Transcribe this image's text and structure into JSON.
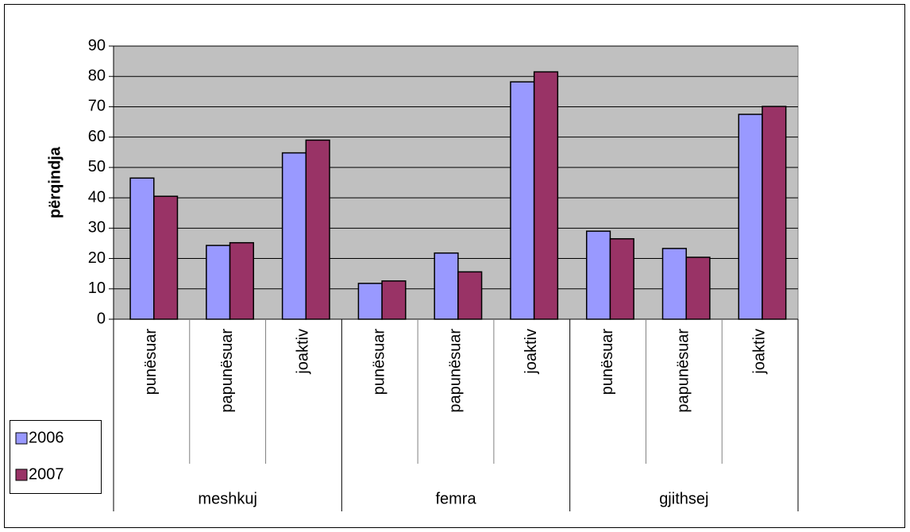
{
  "chart_data": {
    "type": "bar",
    "y_label": "përqindja",
    "categories": [
      "punësuar",
      "papunësuar",
      "joaktiv",
      "punësuar",
      "papunësuar",
      "joaktiv",
      "punësuar",
      "papunësuar",
      "joaktiv"
    ],
    "category_groups": [
      "meshkuj",
      "femra",
      "gjithsej"
    ],
    "series": [
      {
        "name": "2006",
        "color": "#9999ff",
        "values": [
          46.5,
          24.3,
          54.8,
          11.8,
          21.8,
          78.2,
          29.0,
          23.3,
          67.5
        ]
      },
      {
        "name": "2007",
        "color": "#993366",
        "values": [
          40.5,
          25.2,
          59.0,
          12.6,
          15.6,
          81.5,
          26.5,
          20.4,
          70.1
        ]
      }
    ],
    "ylim": [
      0,
      90
    ],
    "yticks": [
      0,
      10,
      20,
      30,
      40,
      50,
      60,
      70,
      80,
      90
    ],
    "grid": true,
    "plot_background": "#c0c0c0",
    "legend": "bottom-left"
  }
}
